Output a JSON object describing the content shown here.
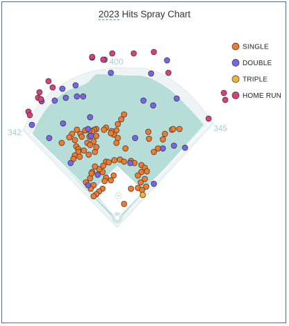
{
  "title_year": "2023",
  "title_rest": " Hits Spray Chart",
  "fence_labels": {
    "left": "342",
    "center": "400",
    "right": "345"
  },
  "colors": {
    "grass": "#b6ddd7",
    "warning_track": "#eef4f5",
    "field_line": "#ffffff",
    "frame_border": "#4a6f8a"
  },
  "chart_data": {
    "type": "scatter",
    "title": "2023 Hits Spray Chart",
    "legend_position": "top-right",
    "categories": [
      {
        "key": "single",
        "label": "SINGLE",
        "color": "#f07a2e"
      },
      {
        "key": "double",
        "label": "DOUBLE",
        "color": "#7a63e6"
      },
      {
        "key": "triple",
        "label": "TRIPLE",
        "color": "#f2b531"
      },
      {
        "key": "home_run",
        "label": "HOME RUN",
        "color": "#d6417a"
      }
    ],
    "hits": {
      "single": [
        [
          176,
          162
        ],
        [
          172,
          169
        ],
        [
          167,
          176
        ],
        [
          165,
          185
        ],
        [
          161,
          191
        ],
        [
          158,
          186
        ],
        [
          150,
          181
        ],
        [
          147,
          184
        ],
        [
          157,
          189
        ],
        [
          136,
          183
        ],
        [
          133,
          184
        ],
        [
          130,
          186
        ],
        [
          126,
          185
        ],
        [
          120,
          185
        ],
        [
          113,
          190
        ],
        [
          115,
          194
        ],
        [
          108,
          184
        ],
        [
          101,
          190
        ],
        [
          105,
          199
        ],
        [
          97,
          195
        ],
        [
          86,
          203
        ],
        [
          107,
          208
        ],
        [
          110,
          212
        ],
        [
          118,
          214
        ],
        [
          110,
          216
        ],
        [
          105,
          221
        ],
        [
          112,
          223
        ],
        [
          103,
          226
        ],
        [
          126,
          194
        ],
        [
          123,
          203
        ],
        [
          136,
          193
        ],
        [
          132,
          201
        ],
        [
          127,
          206
        ],
        [
          134,
          216
        ],
        [
          125,
          220
        ],
        [
          136,
          209
        ],
        [
          167,
          196
        ],
        [
          165,
          203
        ],
        [
          178,
          211
        ],
        [
          150,
          230
        ],
        [
          154,
          231
        ],
        [
          162,
          228
        ],
        [
          170,
          227
        ],
        [
          176,
          230
        ],
        [
          186,
          229
        ],
        [
          191,
          232
        ],
        [
          201,
          235
        ],
        [
          206,
          239
        ],
        [
          201,
          245
        ],
        [
          209,
          244
        ],
        [
          206,
          255
        ],
        [
          196,
          250
        ],
        [
          200,
          260
        ],
        [
          196,
          268
        ],
        [
          208,
          266
        ],
        [
          146,
          236
        ],
        [
          145,
          245
        ],
        [
          150,
          253
        ],
        [
          148,
          258
        ],
        [
          145,
          269
        ],
        [
          140,
          273
        ],
        [
          136,
          277
        ],
        [
          132,
          280
        ],
        [
          130,
          245
        ],
        [
          127,
          254
        ],
        [
          121,
          260
        ],
        [
          132,
          264
        ],
        [
          128,
          269
        ],
        [
          157,
          257
        ],
        [
          161,
          250
        ],
        [
          140,
          241
        ],
        [
          134,
          237
        ],
        [
          129,
          247
        ],
        [
          219,
          216
        ],
        [
          225,
          211
        ],
        [
          232,
          198
        ],
        [
          235,
          190
        ],
        [
          245,
          184
        ],
        [
          256,
          183
        ],
        [
          247,
          183
        ],
        [
          211,
          187
        ],
        [
          212,
          197
        ],
        [
          176,
          291
        ],
        [
          202,
          271
        ],
        [
          186,
          269
        ]
      ],
      "double": [
        [
          130,
          80
        ],
        [
          148,
          83
        ],
        [
          157,
          102
        ],
        [
          215,
          103
        ],
        [
          238,
          84
        ],
        [
          87,
          125
        ],
        [
          92,
          138
        ],
        [
          106,
          120
        ],
        [
          108,
          136
        ],
        [
          117,
          136
        ],
        [
          76,
          142
        ],
        [
          57,
          143
        ],
        [
          43,
          177
        ],
        [
          68,
          196
        ],
        [
          88,
          175
        ],
        [
          124,
          183
        ],
        [
          128,
          193
        ],
        [
          127,
          166
        ],
        [
          99,
          232
        ],
        [
          124,
          264
        ],
        [
          138,
          249
        ],
        [
          192,
          196
        ],
        [
          185,
          232
        ],
        [
          204,
          142
        ],
        [
          218,
          149
        ],
        [
          252,
          139
        ],
        [
          232,
          211
        ],
        [
          248,
          207
        ],
        [
          264,
          210
        ],
        [
          219,
          262
        ]
      ],
      "triple": [
        [
          203,
          278
        ]
      ],
      "home_run": [
        [
          130,
          79
        ],
        [
          146,
          83
        ],
        [
          159,
          74
        ],
        [
          190,
          74
        ],
        [
          219,
          72
        ],
        [
          240,
          102
        ],
        [
          67,
          114
        ],
        [
          73,
          123
        ],
        [
          54,
          130
        ],
        [
          52,
          138
        ],
        [
          56,
          140
        ],
        [
          38,
          158
        ],
        [
          40,
          163
        ],
        [
          320,
          131
        ],
        [
          322,
          141
        ],
        [
          298,
          168
        ]
      ]
    }
  }
}
